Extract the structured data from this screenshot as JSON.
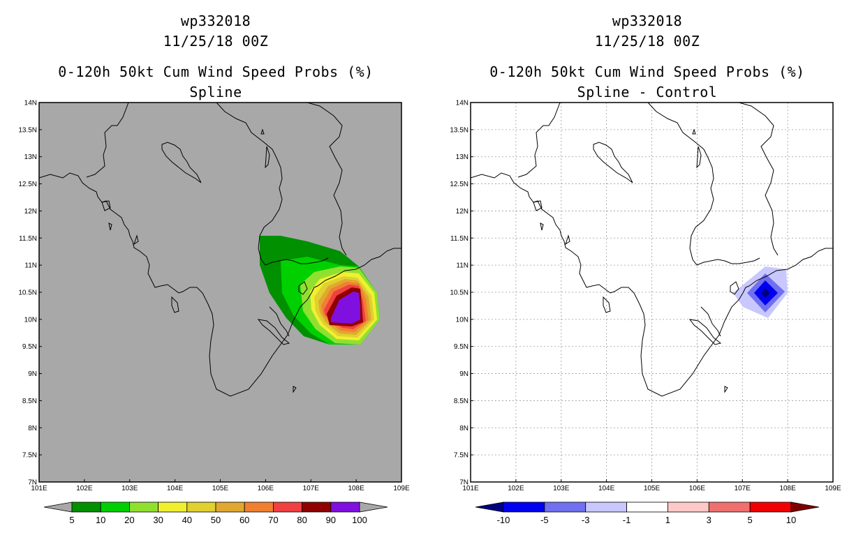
{
  "panels": [
    {
      "storm_id": "wp332018",
      "date": "11/25/18 00Z",
      "title": "0-120h 50kt Cum Wind Speed Probs (%)",
      "subtitle": "Spline",
      "background_color": "#a8a8a8",
      "colorbar": {
        "colors": [
          "#009000",
          "#00d000",
          "#90e030",
          "#f0f030",
          "#e0d030",
          "#e0a830",
          "#f08030",
          "#f04040",
          "#900000",
          "#8010e0"
        ],
        "left_arrow_color": "#a8a8a8",
        "right_arrow_color": "#a8a8a8",
        "labels": [
          "5",
          "10",
          "20",
          "30",
          "40",
          "50",
          "60",
          "70",
          "80",
          "90",
          "100"
        ]
      }
    },
    {
      "storm_id": "wp332018",
      "date": "11/25/18 00Z",
      "title": "0-120h 50kt Cum Wind Speed Probs (%)",
      "subtitle": "Spline - Control",
      "background_color": "#ffffff",
      "colorbar": {
        "colors": [
          "#0000f0",
          "#7070f0",
          "#c8c8ff",
          "#ffffff",
          "#ffc8c8",
          "#f07070",
          "#f00000"
        ],
        "left_arrow_color": "#000080",
        "right_arrow_color": "#800000",
        "labels": [
          "-10",
          "-5",
          "-3",
          "-1",
          "1",
          "3",
          "5",
          "10"
        ]
      }
    }
  ],
  "axes": {
    "lon_labels": [
      "101E",
      "102E",
      "103E",
      "104E",
      "105E",
      "106E",
      "107E",
      "108E",
      "109E"
    ],
    "lat_labels": [
      "7N",
      "7.5N",
      "8N",
      "8.5N",
      "9N",
      "9.5N",
      "10N",
      "10.5N",
      "11N",
      "11.5N",
      "12N",
      "12.5N",
      "13N",
      "13.5N",
      "14N"
    ],
    "lon_range": [
      101,
      109
    ],
    "lat_range": [
      7,
      14
    ]
  }
}
